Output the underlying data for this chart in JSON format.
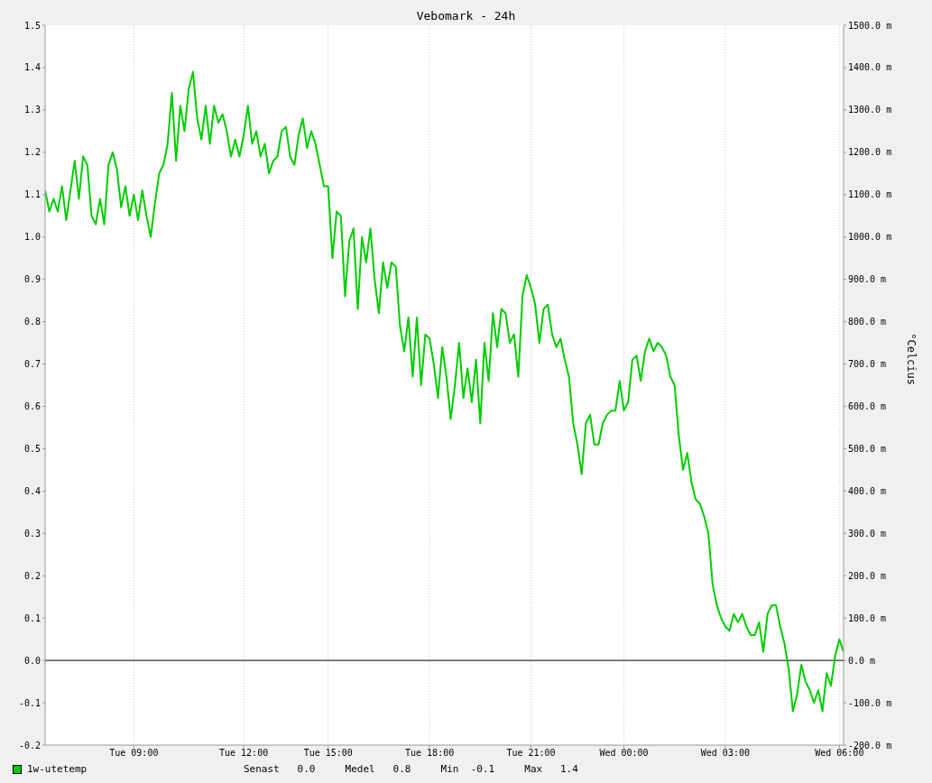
{
  "chart_data": {
    "type": "line",
    "title": "Vebomark - 24h",
    "y2label": "°Celcius",
    "categories": [
      null,
      null,
      null,
      null,
      null,
      null,
      null,
      null,
      null,
      null,
      null,
      null,
      null,
      null,
      null,
      null,
      null,
      null,
      null,
      null,
      null,
      "Tue 09:00",
      null,
      null,
      null,
      null,
      null,
      null,
      null,
      null,
      null,
      null,
      null,
      null,
      null,
      null,
      null,
      null,
      null,
      null,
      null,
      null,
      null,
      null,
      null,
      null,
      null,
      "Tue 12:00",
      null,
      null,
      null,
      null,
      null,
      null,
      null,
      null,
      null,
      null,
      null,
      null,
      null,
      null,
      null,
      null,
      null,
      null,
      null,
      "Tue 15:00",
      null,
      null,
      null,
      null,
      null,
      null,
      null,
      null,
      null,
      null,
      null,
      null,
      null,
      null,
      null,
      null,
      null,
      null,
      null,
      null,
      null,
      null,
      null,
      "Tue 18:00",
      null,
      null,
      null,
      null,
      null,
      null,
      null,
      null,
      null,
      null,
      null,
      null,
      null,
      null,
      null,
      null,
      null,
      null,
      null,
      null,
      null,
      null,
      null,
      "Tue 21:00",
      null,
      null,
      null,
      null,
      null,
      null,
      null,
      null,
      null,
      null,
      null,
      null,
      null,
      null,
      null,
      null,
      null,
      null,
      null,
      null,
      null,
      "Wed 00:00",
      null,
      null,
      null,
      null,
      null,
      null,
      null,
      null,
      null,
      null,
      null,
      null,
      null,
      null,
      null,
      null,
      null,
      null,
      null,
      null,
      null,
      null,
      null,
      "Wed 03:00",
      null,
      null,
      null,
      null,
      null,
      null,
      null,
      null,
      null,
      null,
      null,
      null,
      null,
      null,
      null,
      null,
      null,
      null,
      null,
      null,
      null,
      null,
      null,
      null,
      null,
      null,
      "Wed 06:00",
      null
    ],
    "series": [
      {
        "name": "1w-utetemp",
        "color": "#00cc00",
        "values": [
          1.11,
          1.06,
          1.09,
          1.06,
          1.12,
          1.04,
          1.11,
          1.18,
          1.09,
          1.19,
          1.17,
          1.05,
          1.03,
          1.09,
          1.03,
          1.17,
          1.2,
          1.16,
          1.07,
          1.12,
          1.05,
          1.1,
          1.04,
          1.11,
          1.05,
          1.0,
          1.08,
          1.15,
          1.17,
          1.22,
          1.34,
          1.18,
          1.31,
          1.25,
          1.35,
          1.39,
          1.28,
          1.23,
          1.31,
          1.22,
          1.31,
          1.27,
          1.29,
          1.25,
          1.19,
          1.23,
          1.19,
          1.24,
          1.31,
          1.22,
          1.25,
          1.19,
          1.22,
          1.15,
          1.18,
          1.19,
          1.25,
          1.26,
          1.19,
          1.17,
          1.24,
          1.28,
          1.21,
          1.25,
          1.22,
          1.17,
          1.12,
          1.12,
          0.95,
          1.06,
          1.05,
          0.86,
          0.99,
          1.02,
          0.83,
          1.0,
          0.94,
          1.02,
          0.9,
          0.82,
          0.94,
          0.88,
          0.94,
          0.93,
          0.79,
          0.73,
          0.81,
          0.67,
          0.81,
          0.65,
          0.77,
          0.76,
          0.7,
          0.62,
          0.74,
          0.67,
          0.57,
          0.65,
          0.75,
          0.62,
          0.69,
          0.61,
          0.71,
          0.56,
          0.75,
          0.66,
          0.82,
          0.74,
          0.83,
          0.82,
          0.75,
          0.77,
          0.67,
          0.86,
          0.91,
          0.88,
          0.84,
          0.75,
          0.83,
          0.84,
          0.77,
          0.74,
          0.76,
          0.71,
          0.67,
          0.56,
          0.51,
          0.44,
          0.56,
          0.58,
          0.51,
          0.51,
          0.56,
          0.58,
          0.59,
          0.59,
          0.66,
          0.59,
          0.61,
          0.71,
          0.72,
          0.66,
          0.73,
          0.76,
          0.73,
          0.75,
          0.74,
          0.72,
          0.67,
          0.65,
          0.53,
          0.45,
          0.49,
          0.42,
          0.38,
          0.37,
          0.34,
          0.3,
          0.18,
          0.13,
          0.1,
          0.08,
          0.07,
          0.11,
          0.09,
          0.11,
          0.08,
          0.06,
          0.06,
          0.09,
          0.02,
          0.11,
          0.13,
          0.13,
          0.08,
          0.04,
          -0.02,
          -0.12,
          -0.08,
          -0.01,
          -0.05,
          -0.07,
          -0.1,
          -0.07,
          -0.12,
          -0.03,
          -0.06,
          0.01,
          0.05,
          0.02
        ]
      }
    ],
    "ylim": [
      -0.2,
      1.5
    ],
    "yticks": [
      {
        "value": -0.2,
        "label": "-0.2"
      },
      {
        "value": -0.1,
        "label": "-0.1"
      },
      {
        "value": 0,
        "label": "0.0"
      },
      {
        "value": 0.1,
        "label": "0.1"
      },
      {
        "value": 0.2,
        "label": "0.2"
      },
      {
        "value": 0.3,
        "label": "0.3"
      },
      {
        "value": 0.4,
        "label": "0.4"
      },
      {
        "value": 0.5,
        "label": "0.5"
      },
      {
        "value": 0.6,
        "label": "0.6"
      },
      {
        "value": 0.7,
        "label": "0.7"
      },
      {
        "value": 0.8,
        "label": "0.8"
      },
      {
        "value": 0.9,
        "label": "0.9"
      },
      {
        "value": 1,
        "label": "1.0"
      },
      {
        "value": 1.1,
        "label": "1.1"
      },
      {
        "value": 1.2,
        "label": "1.2"
      },
      {
        "value": 1.3,
        "label": "1.3"
      },
      {
        "value": 1.4,
        "label": "1.4"
      },
      {
        "value": 1.5,
        "label": "1.5"
      }
    ],
    "y2lim": [
      -200,
      1500
    ],
    "y2ticks": [
      {
        "value": -200,
        "label": "-200.0 m"
      },
      {
        "value": -100,
        "label": "-100.0 m"
      },
      {
        "value": 0,
        "label": "0.0 m"
      },
      {
        "value": 100,
        "label": "100.0 m"
      },
      {
        "value": 200,
        "label": "200.0 m"
      },
      {
        "value": 300,
        "label": "300.0 m"
      },
      {
        "value": 400,
        "label": "400.0 m"
      },
      {
        "value": 500,
        "label": "500.0 m"
      },
      {
        "value": 600,
        "label": "600.0 m"
      },
      {
        "value": 700,
        "label": "700.0 m"
      },
      {
        "value": 800,
        "label": "800.0 m"
      },
      {
        "value": 900,
        "label": "900.0 m"
      },
      {
        "value": 1000,
        "label": "1000.0 m"
      },
      {
        "value": 1100,
        "label": "1100.0 m"
      },
      {
        "value": 1200,
        "label": "1200.0 m"
      },
      {
        "value": 1300,
        "label": "1300.0 m"
      },
      {
        "value": 1400,
        "label": "1400.0 m"
      },
      {
        "value": 1500,
        "label": "1500.0 m"
      }
    ],
    "ref_lines": [
      {
        "axis": "y",
        "value": 0,
        "color": "#000000"
      }
    ],
    "annotations": [
      "Senast   0.0     Medel   0.8     Min  -0.1     Max   1.4"
    ],
    "grid": true,
    "legend": "bottom",
    "marker": "none",
    "line_style": "solid"
  }
}
